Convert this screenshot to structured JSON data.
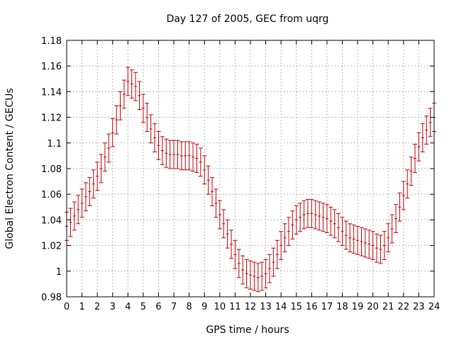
{
  "chart_data": {
    "type": "scatter",
    "title": "Day 127 of 2005, GEC from uqrg",
    "xlabel": "GPS time / hours",
    "ylabel": "Global Electron Content / GECUs",
    "xlim": [
      0,
      24
    ],
    "ylim": [
      0.98,
      1.18
    ],
    "xticks": [
      0,
      1,
      2,
      3,
      4,
      5,
      6,
      7,
      8,
      9,
      10,
      11,
      12,
      13,
      14,
      15,
      16,
      17,
      18,
      19,
      20,
      21,
      22,
      23,
      24
    ],
    "xtick_labels": [
      "0",
      "1",
      "2",
      "3",
      "4",
      "5",
      "6",
      "7",
      "8",
      "9",
      "10",
      "11",
      "12",
      "13",
      "14",
      "15",
      "16",
      "17",
      "18",
      "19",
      "20",
      "21",
      "22",
      "23",
      "24"
    ],
    "yticks": [
      0.98,
      1.0,
      1.02,
      1.04,
      1.06,
      1.08,
      1.1,
      1.12,
      1.14,
      1.16,
      1.18
    ],
    "ytick_labels": [
      "0.98",
      "1",
      "1.02",
      "1.04",
      "1.06",
      "1.08",
      "1.1",
      "1.12",
      "1.14",
      "1.16",
      "1.18"
    ],
    "grid": true,
    "error": 0.011,
    "series": [
      {
        "color": "#c00000",
        "x": [
          0,
          0.25,
          0.5,
          0.75,
          1,
          1.25,
          1.5,
          1.75,
          2,
          2.25,
          2.5,
          2.75,
          3,
          3.25,
          3.5,
          3.75,
          4,
          4.25,
          4.5,
          4.75,
          5,
          5.25,
          5.5,
          5.75,
          6,
          6.25,
          6.5,
          6.75,
          7,
          7.25,
          7.5,
          7.75,
          8,
          8.25,
          8.5,
          8.75,
          9,
          9.25,
          9.5,
          9.75,
          10,
          10.25,
          10.5,
          10.75,
          11,
          11.25,
          11.5,
          11.75,
          12,
          12.25,
          12.5,
          12.75,
          13,
          13.25,
          13.5,
          13.75,
          14,
          14.25,
          14.5,
          14.75,
          15,
          15.25,
          15.5,
          15.75,
          16,
          16.25,
          16.5,
          16.75,
          17,
          17.25,
          17.5,
          17.75,
          18,
          18.25,
          18.5,
          18.75,
          19,
          19.25,
          19.5,
          19.75,
          20,
          20.25,
          20.5,
          20.75,
          21,
          21.25,
          21.5,
          21.75,
          22,
          22.25,
          22.5,
          22.75,
          23,
          23.25,
          23.5,
          23.75,
          24
        ],
        "y": [
          1.035,
          1.038,
          1.043,
          1.048,
          1.053,
          1.058,
          1.062,
          1.068,
          1.074,
          1.08,
          1.089,
          1.096,
          1.108,
          1.118,
          1.129,
          1.138,
          1.148,
          1.146,
          1.144,
          1.137,
          1.127,
          1.12,
          1.111,
          1.104,
          1.098,
          1.094,
          1.092,
          1.091,
          1.091,
          1.091,
          1.09,
          1.09,
          1.09,
          1.089,
          1.088,
          1.085,
          1.079,
          1.071,
          1.062,
          1.053,
          1.044,
          1.037,
          1.029,
          1.021,
          1.013,
          1.006,
          1.001,
          0.998,
          0.997,
          0.996,
          0.995,
          0.996,
          0.998,
          1.002,
          1.007,
          1.013,
          1.02,
          1.026,
          1.031,
          1.036,
          1.04,
          1.042,
          1.044,
          1.045,
          1.045,
          1.044,
          1.043,
          1.042,
          1.041,
          1.039,
          1.037,
          1.034,
          1.031,
          1.028,
          1.026,
          1.025,
          1.024,
          1.023,
          1.022,
          1.021,
          1.02,
          1.018,
          1.017,
          1.02,
          1.026,
          1.033,
          1.041,
          1.05,
          1.059,
          1.068,
          1.078,
          1.088,
          1.097,
          1.104,
          1.11,
          1.116,
          1.12
        ]
      }
    ]
  }
}
